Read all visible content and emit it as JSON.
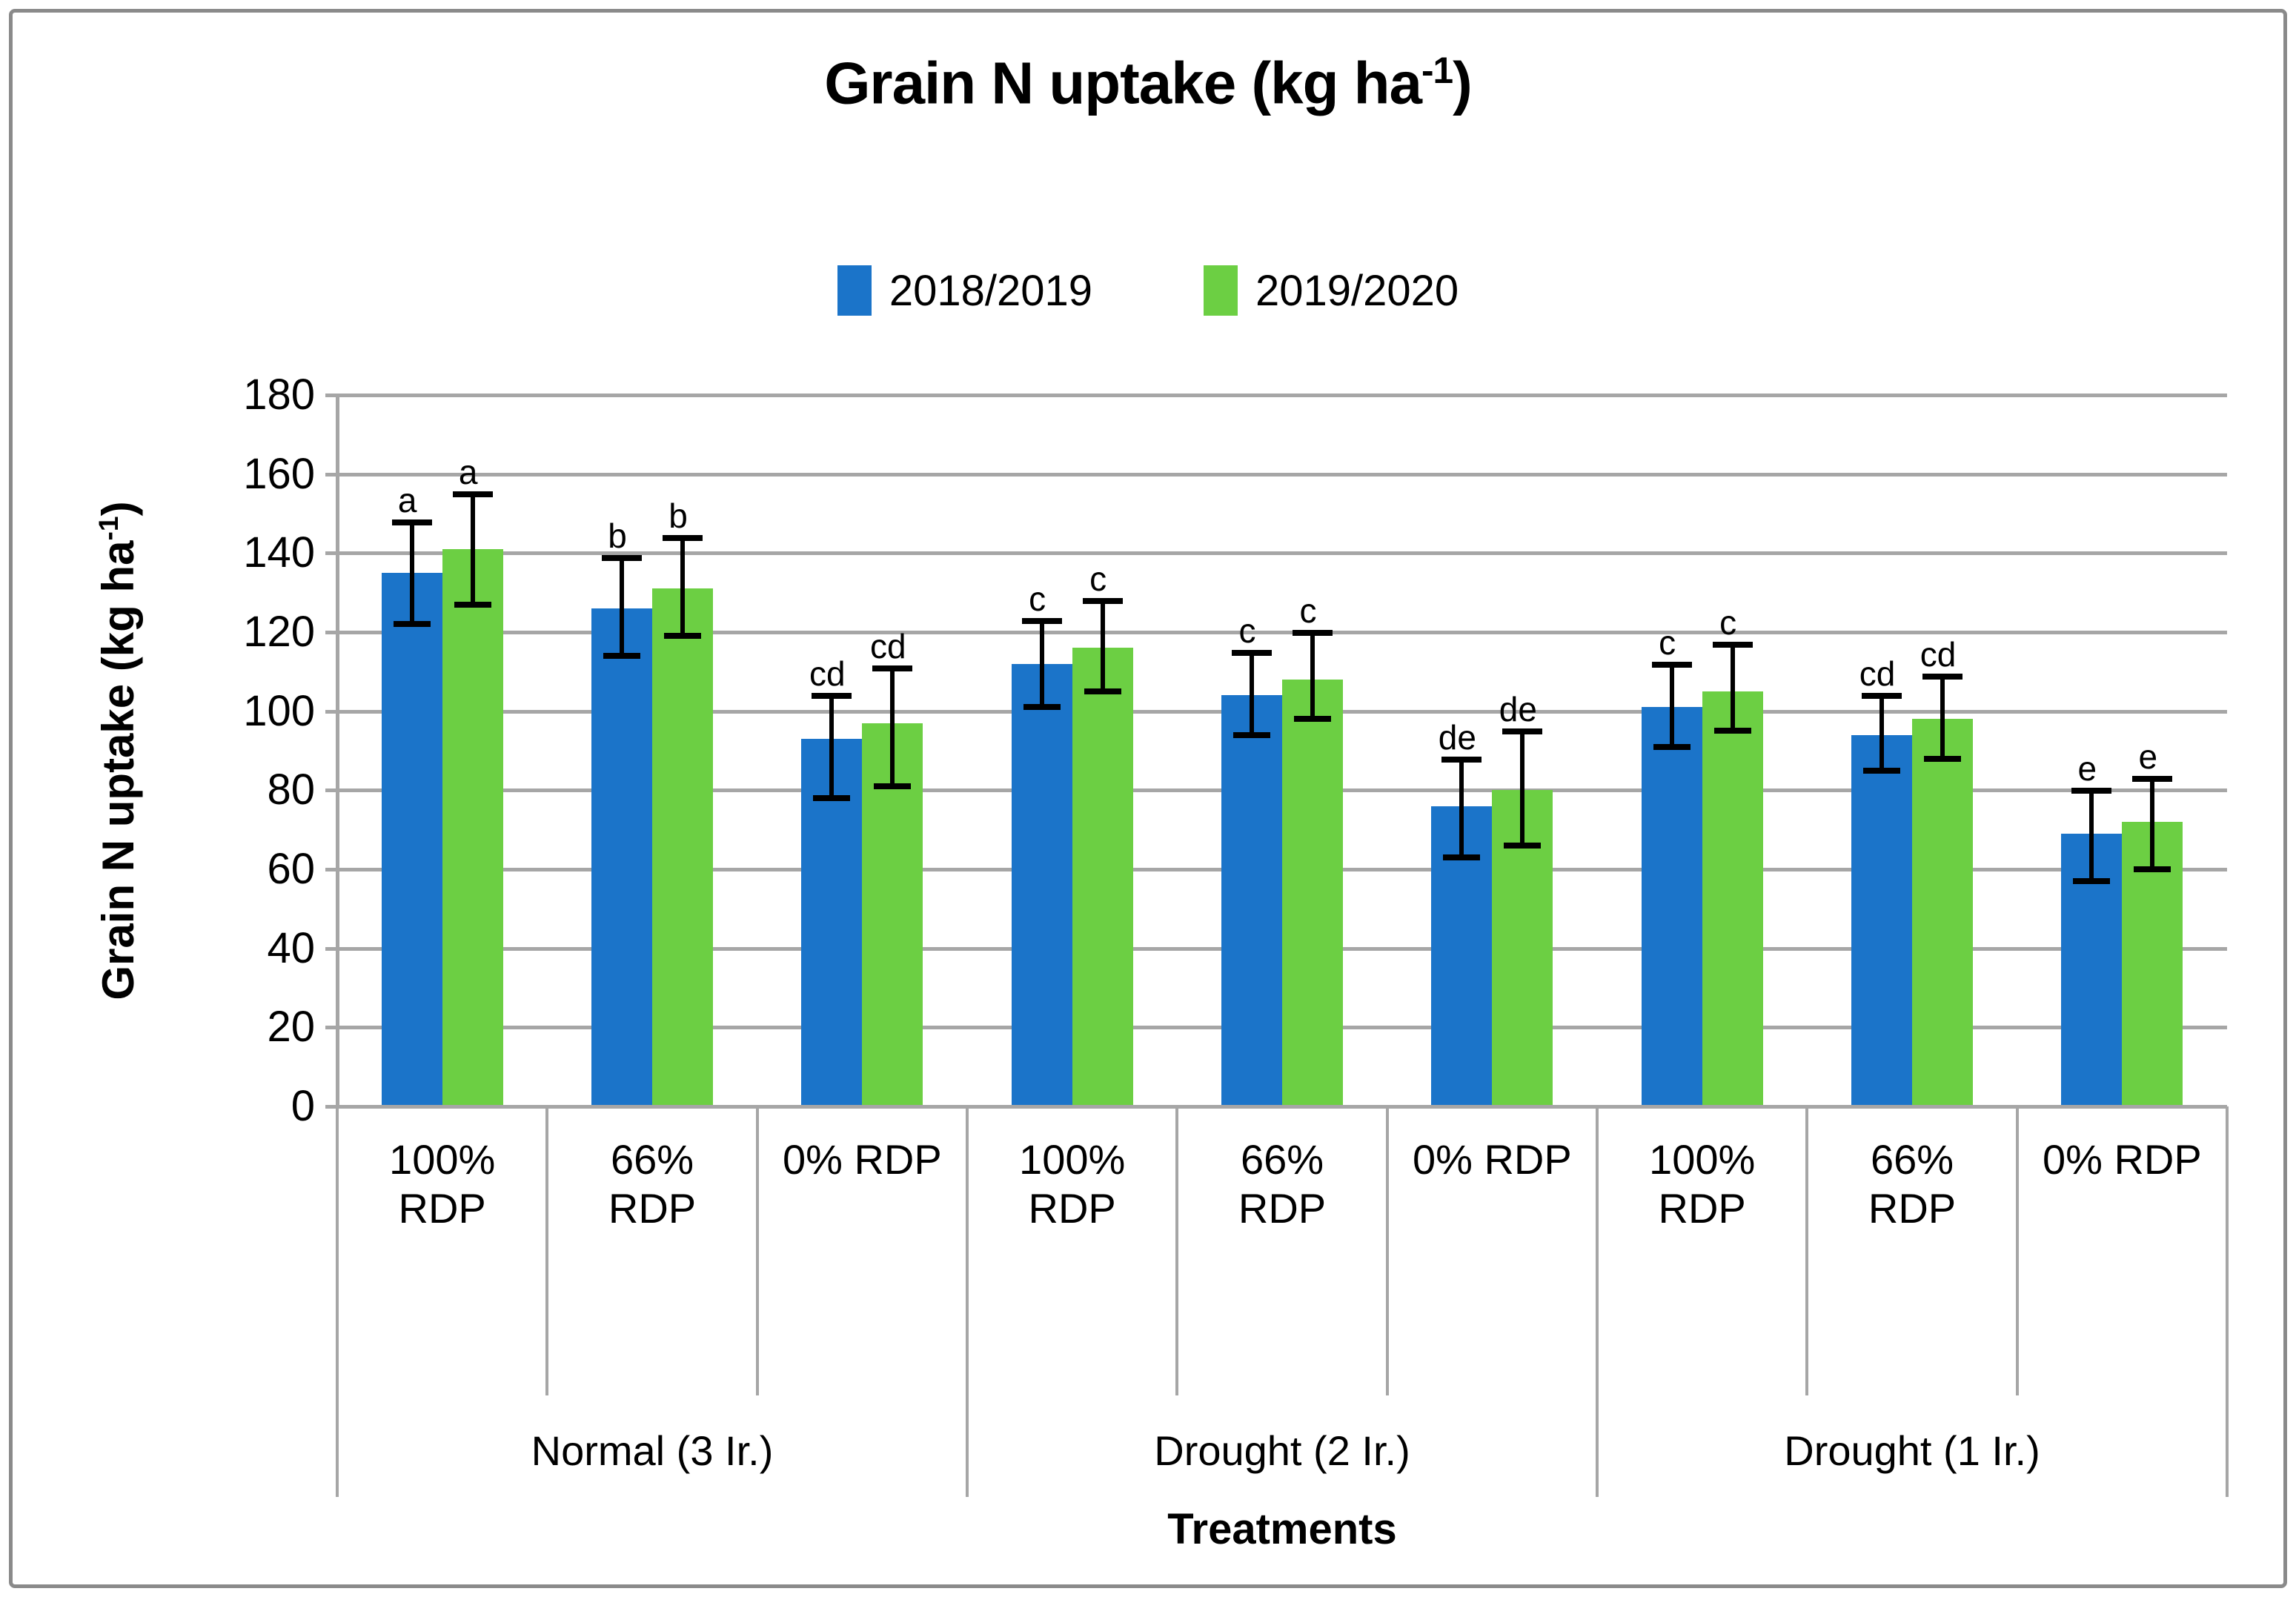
{
  "chart_data": {
    "type": "bar",
    "title": {
      "prefix": "Grain N uptake (kg ha",
      "sup": "-1",
      "suffix": ")"
    },
    "y_axis": {
      "label_prefix": "Grain N uptake (kg ha",
      "label_sup": "-1",
      "label_suffix": ")",
      "min": 0,
      "max": 180,
      "tick_step": 20,
      "tick_labels": [
        "180",
        "160",
        "140",
        "120",
        "100",
        "80",
        "60",
        "40",
        "20",
        "0"
      ]
    },
    "x_axis": {
      "label": "Treatments"
    },
    "groups": [
      {
        "label": "Normal (3 Ir.)",
        "categories": [
          [
            "100%",
            "RDP"
          ],
          [
            "66%",
            "RDP"
          ],
          [
            "0% RDP"
          ]
        ]
      },
      {
        "label": "Drought (2 Ir.)",
        "categories": [
          [
            "100%",
            "RDP"
          ],
          [
            "66%",
            "RDP"
          ],
          [
            "0% RDP"
          ]
        ]
      },
      {
        "label": "Drought (1 Ir.)",
        "categories": [
          [
            "100%",
            "RDP"
          ],
          [
            "66%",
            "RDP"
          ],
          [
            "0% RDP"
          ]
        ]
      }
    ],
    "series": [
      {
        "name": "2018/2019",
        "color": "#1b74c9",
        "values": [
          135,
          126,
          93,
          112,
          104,
          76,
          101,
          94,
          69
        ],
        "err_up": [
          13,
          13,
          11,
          11,
          11,
          12,
          11,
          10,
          11
        ],
        "err_down": [
          13,
          12,
          15,
          11,
          10,
          13,
          10,
          9,
          12
        ],
        "letters": [
          "a",
          "b",
          "cd",
          "c",
          "c",
          "de",
          "c",
          "cd",
          "e"
        ]
      },
      {
        "name": "2019/2020",
        "color": "#6ccf43",
        "values": [
          141,
          131,
          97,
          116,
          108,
          80,
          105,
          98,
          72
        ],
        "err_up": [
          14,
          13,
          14,
          12,
          12,
          15,
          12,
          11,
          11
        ],
        "err_down": [
          14,
          12,
          16,
          11,
          10,
          14,
          10,
          10,
          12
        ],
        "letters": [
          "a",
          "b",
          "cd",
          "c",
          "c",
          "de",
          "c",
          "cd",
          "e"
        ]
      }
    ],
    "grid_color": "#a6a6a6",
    "error_bar_color": "#000000"
  }
}
